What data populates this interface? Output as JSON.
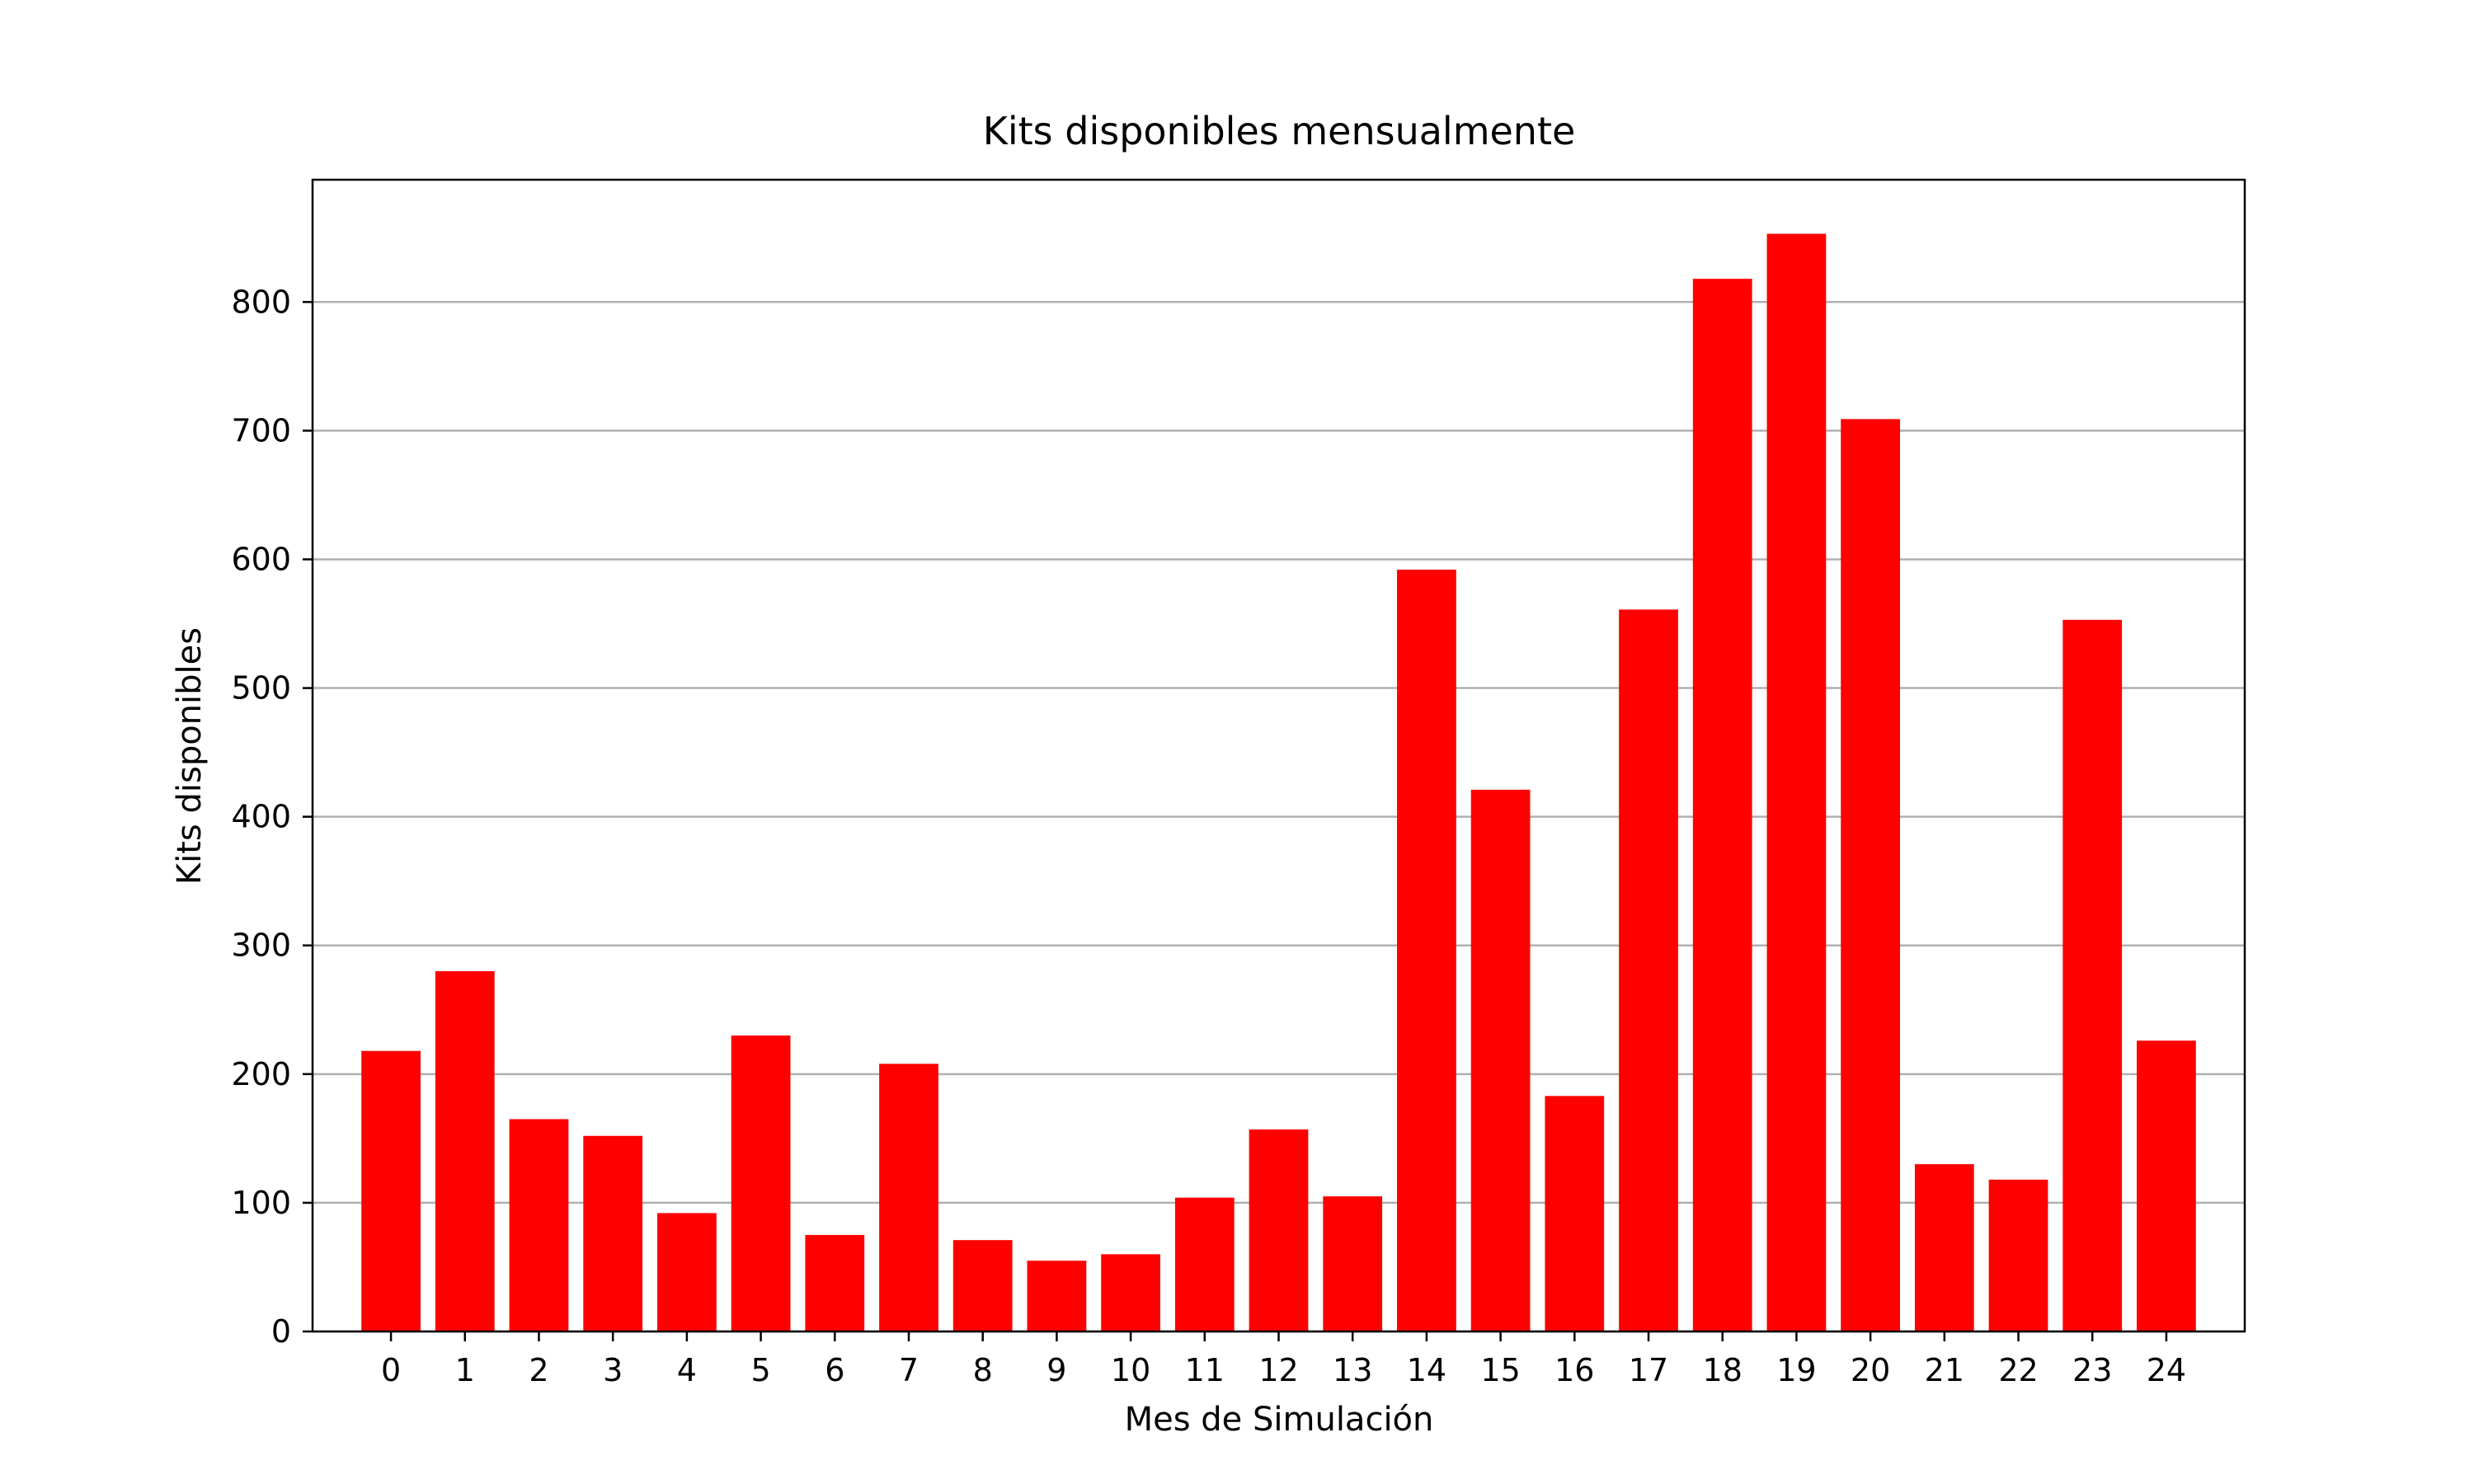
{
  "chart_data": {
    "type": "bar",
    "title": "Kits disponibles mensualmente",
    "xlabel": "Mes de Simulación",
    "ylabel": "Kits disponibles",
    "categories": [
      "0",
      "1",
      "2",
      "3",
      "4",
      "5",
      "6",
      "7",
      "8",
      "9",
      "10",
      "11",
      "12",
      "13",
      "14",
      "15",
      "16",
      "17",
      "18",
      "19",
      "20",
      "21",
      "22",
      "23",
      "24"
    ],
    "values": [
      218,
      280,
      165,
      152,
      92,
      230,
      75,
      208,
      71,
      55,
      60,
      104,
      157,
      105,
      592,
      421,
      183,
      561,
      818,
      853,
      709,
      130,
      118,
      553,
      226
    ],
    "ylim": [
      0,
      895
    ],
    "yticks": [
      0,
      100,
      200,
      300,
      400,
      500,
      600,
      700,
      800
    ],
    "ytick_labels": [
      "0",
      "100",
      "200",
      "300",
      "400",
      "500",
      "600",
      "700",
      "800"
    ],
    "grid": "y",
    "legend": "none",
    "bar_color": "#ff0000",
    "grid_color": "#b0b0b0"
  }
}
